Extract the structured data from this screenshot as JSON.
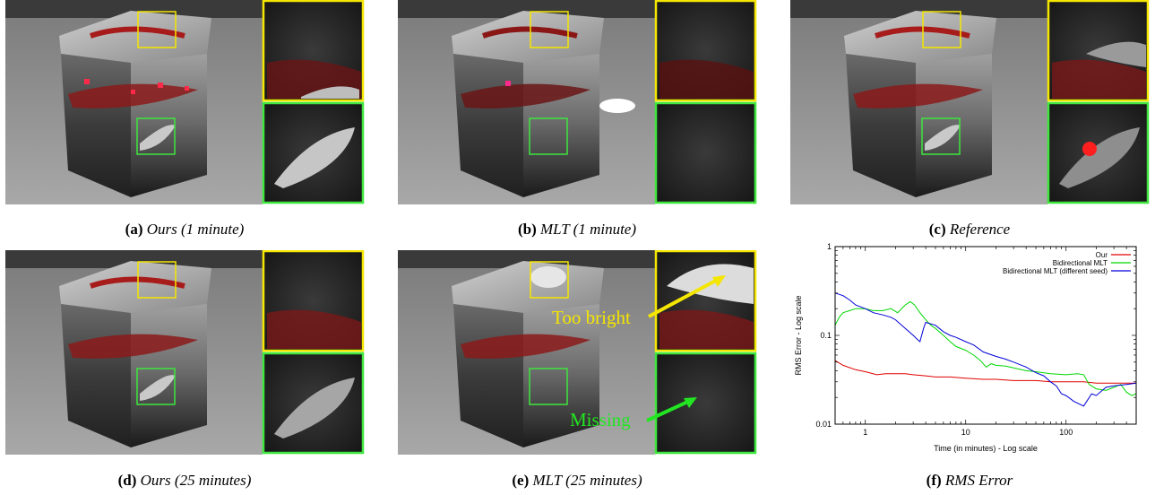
{
  "figure": {
    "panels": [
      {
        "id": "a",
        "label": "(a)",
        "caption": "Ours (1 minute)"
      },
      {
        "id": "b",
        "label": "(b)",
        "caption": "MLT (1 minute)"
      },
      {
        "id": "c",
        "label": "(c)",
        "caption": "Reference"
      },
      {
        "id": "d",
        "label": "(d)",
        "caption": "Ours (25 minutes)"
      },
      {
        "id": "e",
        "label": "(e)",
        "caption": "MLT (25 minutes)",
        "annotations": [
          "Too bright",
          "Missing"
        ]
      },
      {
        "id": "f",
        "label": "(f)",
        "caption": "RMS Error"
      }
    ],
    "colors": {
      "inset_top": "#f5e600",
      "inset_bottom": "#3ee63e",
      "annotation_too_bright": "#f5e600",
      "annotation_missing": "#22e622",
      "series_ours": "#e00000",
      "series_bmlt": "#00d800",
      "series_bmlt_seed": "#0000d8"
    }
  },
  "chart_data": {
    "type": "line",
    "xlabel": "Time (in minutes) - Log scale",
    "ylabel": "RMS Error - Log scale",
    "xscale": "log",
    "yscale": "log",
    "xlim": [
      0.5,
      500
    ],
    "ylim": [
      0.01,
      1
    ],
    "xticks": [
      "1",
      "10",
      "100"
    ],
    "yticks": [
      "1",
      "0.1",
      "0.01"
    ],
    "legend_position": "top-right",
    "series": [
      {
        "name": "Our",
        "color": "#e00000",
        "x": [
          0.5,
          0.6,
          0.8,
          1.0,
          1.3,
          1.6,
          2.0,
          2.5,
          3.0,
          4.0,
          5.0,
          7.0,
          10,
          15,
          20,
          30,
          50,
          70,
          100,
          150,
          200,
          300,
          400,
          500
        ],
        "y": [
          0.052,
          0.046,
          0.041,
          0.039,
          0.036,
          0.037,
          0.037,
          0.037,
          0.036,
          0.035,
          0.034,
          0.034,
          0.033,
          0.032,
          0.032,
          0.031,
          0.031,
          0.03,
          0.03,
          0.03,
          0.029,
          0.029,
          0.029,
          0.029
        ]
      },
      {
        "name": "Bidirectional MLT",
        "color": "#00d800",
        "x": [
          0.5,
          0.55,
          0.6,
          0.7,
          0.8,
          1.0,
          1.2,
          1.5,
          1.8,
          2.1,
          2.5,
          2.8,
          3.1,
          3.5,
          4.0,
          4.5,
          5.0,
          6.0,
          7.0,
          8.0,
          10,
          12,
          14,
          16,
          18,
          20,
          25,
          30,
          40,
          50,
          70,
          100,
          130,
          150,
          170,
          200,
          250,
          300,
          350,
          400,
          450,
          500
        ],
        "y": [
          0.13,
          0.16,
          0.18,
          0.19,
          0.2,
          0.2,
          0.19,
          0.19,
          0.2,
          0.18,
          0.22,
          0.24,
          0.22,
          0.18,
          0.15,
          0.13,
          0.12,
          0.1,
          0.085,
          0.075,
          0.068,
          0.06,
          0.052,
          0.044,
          0.048,
          0.046,
          0.045,
          0.043,
          0.04,
          0.039,
          0.037,
          0.036,
          0.037,
          0.036,
          0.028,
          0.025,
          0.024,
          0.026,
          0.028,
          0.023,
          0.021,
          0.022
        ]
      },
      {
        "name": "Bidirectional MLT (different seed)",
        "color": "#0000d8",
        "x": [
          0.5,
          0.6,
          0.7,
          0.8,
          1.0,
          1.2,
          1.5,
          1.8,
          2.0,
          2.5,
          3.0,
          3.3,
          3.5,
          3.8,
          4.0,
          5.0,
          6.0,
          7.0,
          8.0,
          10,
          12,
          15,
          20,
          25,
          30,
          40,
          50,
          60,
          70,
          80,
          90,
          100,
          120,
          150,
          180,
          200,
          250,
          300,
          400,
          500
        ],
        "y": [
          0.3,
          0.28,
          0.25,
          0.22,
          0.2,
          0.18,
          0.17,
          0.16,
          0.15,
          0.12,
          0.1,
          0.09,
          0.085,
          0.12,
          0.14,
          0.13,
          0.11,
          0.1,
          0.095,
          0.085,
          0.078,
          0.065,
          0.058,
          0.054,
          0.05,
          0.044,
          0.038,
          0.035,
          0.03,
          0.027,
          0.022,
          0.021,
          0.018,
          0.016,
          0.022,
          0.021,
          0.026,
          0.027,
          0.028,
          0.029
        ]
      }
    ]
  }
}
